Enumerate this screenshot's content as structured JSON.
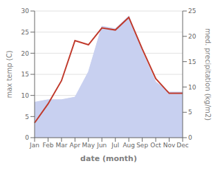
{
  "chart_data": {
    "type": "line",
    "xlabel": "date (month)",
    "ylabel": "max temp (C)",
    "y2label": "med. precipitation (kg/m2)",
    "categories": [
      "Jan",
      "Feb",
      "Mar",
      "Apr",
      "May",
      "Jun",
      "Jul",
      "Aug",
      "Sep",
      "Oct",
      "Nov",
      "Dec"
    ],
    "series": [
      {
        "type": "area",
        "axis": "y2",
        "color": "#c8d0f0",
        "values": [
          7.0,
          7.5,
          7.5,
          8.0,
          13.0,
          22.0,
          21.5,
          24.0,
          17.0,
          11.0,
          9.0,
          9.0
        ]
      },
      {
        "type": "line",
        "color": "#c0392b",
        "values": [
          3.5,
          8.0,
          13.5,
          23.0,
          22.0,
          26.0,
          25.5,
          28.5,
          21.0,
          14.0,
          10.5,
          10.5
        ]
      }
    ],
    "ylim": [
      0,
      30
    ],
    "yticks": [
      0,
      5,
      10,
      15,
      20,
      25,
      30
    ],
    "y2lim": [
      0,
      25
    ],
    "y2ticks": [
      0,
      5,
      10,
      15,
      20,
      25
    ],
    "grid": true
  }
}
